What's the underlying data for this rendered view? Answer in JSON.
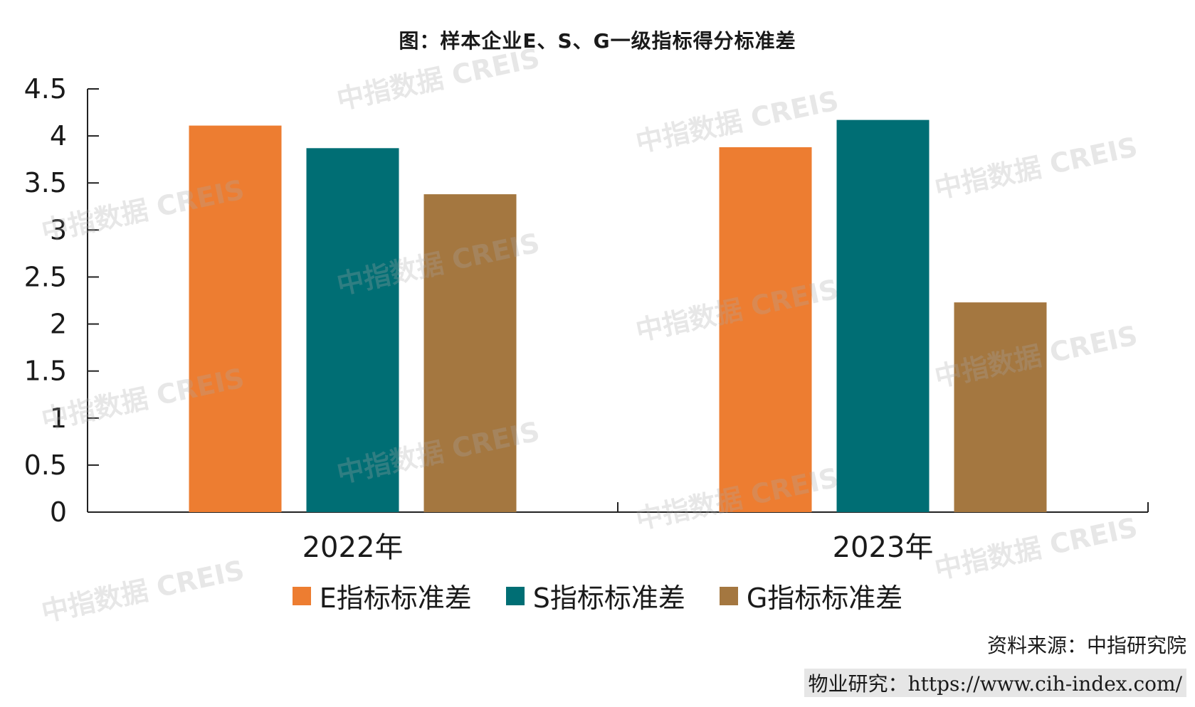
{
  "title": "图：样本企业E、S、G一级指标得分标准差",
  "watermark": "中指数据 CREIS",
  "source": "资料来源：中指研究院",
  "site_label": "物业研究：",
  "site_url": "https://www.cih-index.com/",
  "chart_data": {
    "type": "bar",
    "title": "图：样本企业E、S、G一级指标得分标准差",
    "categories": [
      "2022年",
      "2023年"
    ],
    "series": [
      {
        "name": "E指标标准差",
        "color": "#ED7D31",
        "values": [
          4.11,
          3.88
        ]
      },
      {
        "name": "S指标标准差",
        "color": "#006E74",
        "values": [
          3.87,
          4.17
        ]
      },
      {
        "name": "G指标标准差",
        "color": "#A47740",
        "values": [
          3.38,
          2.23
        ]
      }
    ],
    "ylim": [
      0,
      4.5
    ],
    "yticks": [
      "0",
      "0.5",
      "1",
      "1.5",
      "2",
      "2.5",
      "3",
      "3.5",
      "4",
      "4.5"
    ],
    "grid": false,
    "legend": "bottom"
  }
}
